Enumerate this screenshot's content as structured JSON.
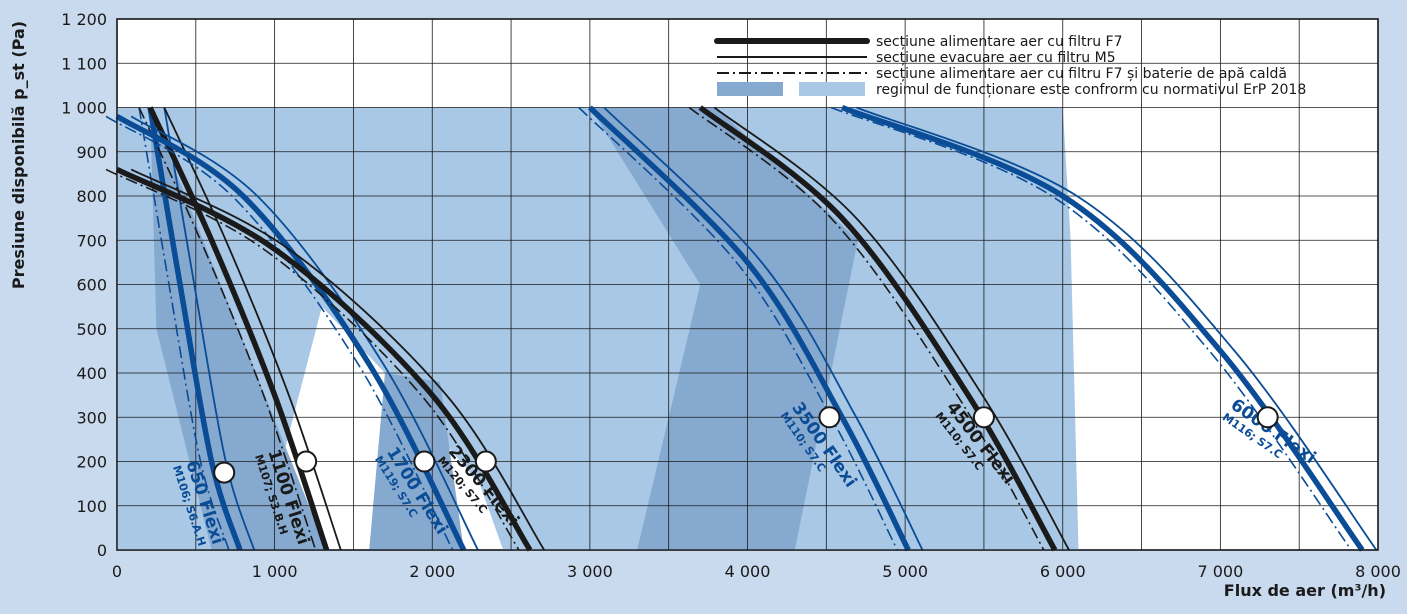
{
  "chart_data": {
    "type": "line",
    "xlabel": "Flux de aer (m³/h)",
    "ylabel": "Presiune disponibilă p_st (Pa)",
    "xlim": [
      0,
      8000
    ],
    "ylim": [
      0,
      1200
    ],
    "x_ticks": [
      "0",
      "1 000",
      "2 000",
      "3 000",
      "4 000",
      "5 000",
      "6 000",
      "7 000",
      "8 000"
    ],
    "y_ticks": [
      "0",
      "100",
      "200",
      "300",
      "400",
      "500",
      "600",
      "700",
      "800",
      "900",
      "1 000",
      "1 100",
      "1 200"
    ],
    "grid": true,
    "legend_position": "top-right",
    "legend": [
      {
        "style": "thick-solid",
        "label": "secțiune alimentare aer cu filtru F7"
      },
      {
        "style": "thin-solid",
        "label": "secțiune evacuare aer cu filtru M5"
      },
      {
        "style": "dash-dot",
        "label": "secțiune alimentare aer cu filtru F7 și baterie de apă caldă"
      },
      {
        "style": "shaded",
        "label": "regimul de funcționare este confrorm cu normativul ErP 2018"
      }
    ],
    "colors": {
      "black_units": "#1a1a1a",
      "blue_units": "#0a4c96",
      "zone_light": "#a8c8e6",
      "zone_dark": "#86a9d0",
      "background": "#c9d9ee",
      "plot_bg": "#ffffff"
    },
    "units": [
      {
        "name": "650 Flexi",
        "code": "M106; S6.A.H",
        "color": "blue",
        "curve_x": [
          210,
          400,
          600,
          780
        ],
        "curve_y": [
          1000,
          600,
          200,
          0
        ],
        "point": [
          680,
          175
        ],
        "label_angle": 72
      },
      {
        "name": "1100 Flexi",
        "code": "M107; S3.B.H",
        "color": "black",
        "curve_x": [
          210,
          600,
          1000,
          1330
        ],
        "curve_y": [
          1000,
          700,
          350,
          0
        ],
        "point": [
          1200,
          200
        ],
        "label_angle": 72
      },
      {
        "name": "1700 Flexi",
        "code": "M119; S7.C",
        "color": "blue",
        "curve_x": [
          0,
          800,
          1600,
          2200
        ],
        "curve_y": [
          980,
          800,
          420,
          0
        ],
        "point": [
          1950,
          200
        ],
        "label_angle": 58
      },
      {
        "name": "2300 Flexi",
        "code": "M120; S7.C",
        "color": "black",
        "curve_x": [
          0,
          1000,
          2000,
          2620
        ],
        "curve_y": [
          860,
          680,
          350,
          0
        ],
        "point": [
          2340,
          200
        ],
        "label_angle": 50
      },
      {
        "name": "3500 Flexi",
        "code": "M110; S7.C",
        "color": "blue",
        "curve_x": [
          3000,
          4000,
          4600,
          5020
        ],
        "curve_y": [
          1000,
          650,
          300,
          0
        ],
        "point": [
          4520,
          300
        ],
        "label_angle": 55
      },
      {
        "name": "4500 Flexi",
        "code": "M110; S7.C",
        "color": "black",
        "curve_x": [
          3700,
          4600,
          5400,
          5950
        ],
        "curve_y": [
          1000,
          750,
          350,
          0
        ],
        "point": [
          5500,
          300
        ],
        "label_angle": 52
      },
      {
        "name": "6000 Flexi",
        "code": "M116; S7.C",
        "color": "blue",
        "curve_x": [
          4600,
          6000,
          7000,
          7900
        ],
        "curve_y": [
          1000,
          800,
          450,
          0
        ],
        "point": [
          7300,
          300
        ],
        "label_angle": 35
      }
    ]
  }
}
